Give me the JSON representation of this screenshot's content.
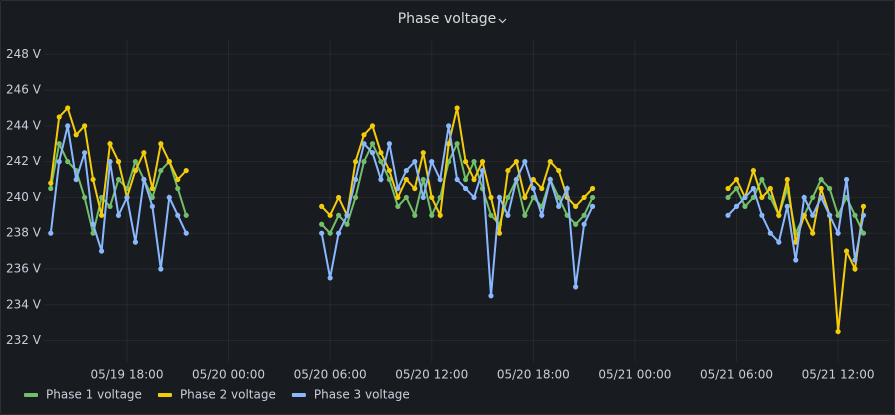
{
  "chart_data": {
    "type": "line",
    "title": "Phase voltage",
    "x": [
      "05/19 13:30",
      "05/19 14:00",
      "05/19 14:30",
      "05/19 15:00",
      "05/19 15:30",
      "05/19 16:00",
      "05/19 16:30",
      "05/19 17:00",
      "05/19 17:30",
      "05/19 18:00",
      "05/19 18:30",
      "05/19 19:00",
      "05/19 19:30",
      "05/19 20:00",
      "05/19 20:30",
      "05/19 21:00",
      "05/19 21:30",
      "05/19 22:00",
      "05/20 05:30",
      "05/20 06:00",
      "05/20 06:30",
      "05/20 07:00",
      "05/20 07:30",
      "05/20 08:00",
      "05/20 08:30",
      "05/20 09:00",
      "05/20 09:30",
      "05/20 10:00",
      "05/20 10:30",
      "05/20 11:00",
      "05/20 11:30",
      "05/20 12:00",
      "05/20 12:30",
      "05/20 13:00",
      "05/20 13:30",
      "05/20 14:00",
      "05/20 14:30",
      "05/20 15:00",
      "05/20 15:30",
      "05/20 16:00",
      "05/20 16:30",
      "05/20 17:00",
      "05/20 17:30",
      "05/20 18:00",
      "05/20 18:30",
      "05/20 19:00",
      "05/20 19:30",
      "05/20 20:00",
      "05/20 20:30",
      "05/20 21:00",
      "05/20 21:30",
      "05/20 22:00",
      "05/21 05:30",
      "05/21 06:00",
      "05/21 06:30",
      "05/21 07:00",
      "05/21 07:30",
      "05/21 08:00",
      "05/21 08:30",
      "05/21 09:00",
      "05/21 09:30",
      "05/21 10:00",
      "05/21 10:30",
      "05/21 11:00",
      "05/21 11:30",
      "05/21 12:00",
      "05/21 12:30",
      "05/21 13:00",
      "05/21 13:30"
    ],
    "series": [
      {
        "name": "Phase 1 voltage",
        "color": "#73bf69",
        "values": [
          240.5,
          243,
          242,
          241.5,
          240,
          238,
          240,
          239.5,
          241,
          240.5,
          242,
          241,
          240,
          241.5,
          242,
          240.5,
          239,
          null,
          238.5,
          238,
          239,
          238.5,
          240,
          242,
          243,
          242,
          241,
          239.5,
          240,
          239,
          241,
          239,
          240,
          242,
          243,
          241,
          242,
          240.5,
          239,
          238.5,
          240,
          241,
          239,
          240,
          239.5,
          241,
          240,
          239,
          238.5,
          239,
          240,
          null,
          240,
          240.5,
          239.5,
          240,
          241,
          240,
          239,
          240.5,
          238,
          239,
          240,
          241,
          240.5,
          239,
          240,
          239,
          238
        ]
      },
      {
        "name": "Phase 2 voltage",
        "color": "#f2cc0c",
        "values": [
          240.8,
          244.5,
          245,
          243.5,
          244,
          241,
          239,
          243,
          242,
          240,
          241.5,
          242.5,
          240.5,
          243,
          242,
          241,
          241.5,
          null,
          239.5,
          239,
          240,
          239,
          242,
          243.5,
          244,
          242.5,
          241.5,
          240,
          241,
          240.5,
          242.5,
          240,
          239,
          243,
          245,
          242,
          241,
          242,
          240,
          238,
          241.5,
          242,
          240,
          241,
          240.5,
          242,
          241.5,
          240,
          239.5,
          240,
          240.5,
          null,
          240.5,
          241,
          240,
          241.5,
          240,
          240.5,
          239,
          241,
          237.5,
          239,
          238,
          240.5,
          239,
          232.5,
          237,
          236,
          239.5
        ]
      },
      {
        "name": "Phase 3 voltage",
        "color": "#8ab8ff",
        "values": [
          238,
          242,
          244,
          241,
          242.5,
          238.5,
          237,
          242,
          239,
          240,
          237.5,
          241,
          239.5,
          236,
          240,
          239,
          238,
          null,
          238,
          235.5,
          238,
          239,
          241,
          243,
          242.5,
          241,
          243,
          240.5,
          241.5,
          242,
          240,
          242,
          241,
          244,
          241,
          240.5,
          240,
          241.5,
          234.5,
          240,
          239,
          241,
          242,
          240.5,
          239,
          241,
          239.5,
          240.5,
          235,
          238.5,
          239.5,
          null,
          239,
          239.5,
          240,
          240.5,
          239,
          238,
          237.5,
          239.5,
          236.5,
          240,
          239,
          240,
          239,
          238,
          241,
          236.5,
          239
        ]
      }
    ],
    "xlim": [
      "05/19 13:06",
      "05/21 15:04"
    ],
    "xticks": [
      "05/19 18:00",
      "05/20 00:00",
      "05/20 06:00",
      "05/20 12:00",
      "05/20 18:00",
      "05/21 00:00",
      "05/21 06:00",
      "05/21 12:00"
    ],
    "ylim": [
      230.8,
      248.8
    ],
    "yticks": [
      {
        "value": 232,
        "label": "232 V"
      },
      {
        "value": 234,
        "label": "234 V"
      },
      {
        "value": 236,
        "label": "236 V"
      },
      {
        "value": 238,
        "label": "238 V"
      },
      {
        "value": 240,
        "label": "240 V"
      },
      {
        "value": 242,
        "label": "242 V"
      },
      {
        "value": 244,
        "label": "244 V"
      },
      {
        "value": 246,
        "label": "246 V"
      },
      {
        "value": 248,
        "label": "248 V"
      }
    ],
    "grid": true,
    "legend": "bottom-left"
  }
}
